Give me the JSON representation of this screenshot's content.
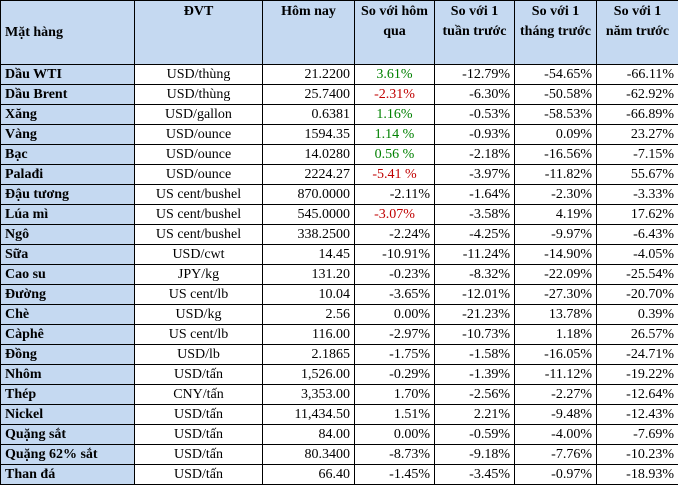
{
  "headers": [
    "Mặt hàng",
    "ĐVT",
    "Hôm nay",
    "So với hôm qua",
    "So với 1 tuần trước",
    "So với 1 tháng trước",
    "So với 1 năm trước"
  ],
  "colors": {
    "header_bg": "#c5d9f1",
    "up": "#008000",
    "down": "#c00000"
  },
  "rows": [
    {
      "item": "Dầu WTI",
      "unit": "USD/thùng",
      "today": "21.2200",
      "d1": "3.61%",
      "d1_style": "up",
      "w1": "-12.79%",
      "m1": "-54.65%",
      "y1": "-66.11%"
    },
    {
      "item": "Dầu Brent",
      "unit": "USD/thùng",
      "today": "25.7400",
      "d1": "-2.31%",
      "d1_style": "down",
      "w1": "-6.30%",
      "m1": "-50.58%",
      "y1": "-62.92%"
    },
    {
      "item": "Xăng",
      "unit": "USD/gallon",
      "today": "0.6381",
      "d1": "1.16%",
      "d1_style": "up",
      "w1": "-0.53%",
      "m1": "-58.53%",
      "y1": "-66.89%"
    },
    {
      "item": "Vàng",
      "unit": "USD/ounce",
      "today": "1594.35",
      "d1": "1.14 %",
      "d1_style": "up",
      "w1": "-0.93%",
      "m1": "0.09%",
      "y1": "23.27%"
    },
    {
      "item": "Bạc",
      "unit": "USD/ounce",
      "today": "14.0280",
      "d1": "0.56 %",
      "d1_style": "up",
      "w1": "-2.18%",
      "m1": "-16.56%",
      "y1": "-7.15%"
    },
    {
      "item": "Palađi",
      "unit": "USD/ounce",
      "today": "2224.27",
      "d1": "-5.41 %",
      "d1_style": "down",
      "w1": "-3.97%",
      "m1": "-11.82%",
      "y1": "55.67%"
    },
    {
      "item": "Đậu tương",
      "unit": "US cent/bushel",
      "today": "870.0000",
      "d1": "-2.11%",
      "d1_style": "num",
      "w1": "-1.64%",
      "m1": "-2.30%",
      "y1": "-3.33%"
    },
    {
      "item": "Lúa mì",
      "unit": "US cent/bushel",
      "today": "545.0000",
      "d1": "-3.07%",
      "d1_style": "down",
      "w1": "-3.58%",
      "m1": "4.19%",
      "y1": "17.62%"
    },
    {
      "item": "Ngô",
      "unit": "US cent/bushel",
      "today": "338.2500",
      "d1": "-2.24%",
      "d1_style": "num",
      "w1": "-4.25%",
      "m1": "-9.97%",
      "y1": "-6.43%"
    },
    {
      "item": "Sữa",
      "unit": "USD/cwt",
      "today": "14.45",
      "d1": "-10.91%",
      "d1_style": "num",
      "w1": "-11.24%",
      "m1": "-14.90%",
      "y1": "-4.05%"
    },
    {
      "item": "Cao su",
      "unit": "JPY/kg",
      "today": "131.20",
      "d1": "-0.23%",
      "d1_style": "num",
      "w1": "-8.32%",
      "m1": "-22.09%",
      "y1": "-25.54%"
    },
    {
      "item": "Đường",
      "unit": "US cent/lb",
      "today": "10.04",
      "d1": "-3.65%",
      "d1_style": "num",
      "w1": "-12.01%",
      "m1": "-27.30%",
      "y1": "-20.70%"
    },
    {
      "item": "Chè",
      "unit": "USD/kg",
      "today": "2.56",
      "d1": "0.00%",
      "d1_style": "num",
      "w1": "-21.23%",
      "m1": "13.78%",
      "y1": "0.39%"
    },
    {
      "item": "Càphê",
      "unit": "US cent/lb",
      "today": "116.00",
      "d1": "-2.97%",
      "d1_style": "num",
      "w1": "-10.73%",
      "m1": "1.18%",
      "y1": "26.57%"
    },
    {
      "item": "Đồng",
      "unit": "USD/lb",
      "today": "2.1865",
      "d1": "-1.75%",
      "d1_style": "num",
      "w1": "-1.58%",
      "m1": "-16.05%",
      "y1": "-24.71%"
    },
    {
      "item": "Nhôm",
      "unit": "USD/tấn",
      "today": "1,526.00",
      "d1": "-0.29%",
      "d1_style": "num",
      "w1": "-1.39%",
      "m1": "-11.12%",
      "y1": "-19.22%"
    },
    {
      "item": "Thép",
      "unit": "CNY/tấn",
      "today": "3,353.00",
      "d1": "1.70%",
      "d1_style": "num",
      "w1": "-2.56%",
      "m1": "-2.27%",
      "y1": "-12.64%"
    },
    {
      "item": "Nickel",
      "unit": "USD/tấn",
      "today": "11,434.50",
      "d1": "1.51%",
      "d1_style": "num",
      "w1": "2.21%",
      "m1": "-9.48%",
      "y1": "-12.43%"
    },
    {
      "item": "Quặng sắt",
      "unit": "USD/tấn",
      "today": "84.00",
      "d1": "0.00%",
      "d1_style": "num",
      "w1": "-0.59%",
      "m1": "-4.00%",
      "y1": "-7.69%"
    },
    {
      "item": "Quặng 62% sắt",
      "unit": "USD/tấn",
      "today": "80.3400",
      "d1": "-8.73%",
      "d1_style": "num",
      "w1": "-9.18%",
      "m1": "-7.76%",
      "y1": "-10.23%"
    },
    {
      "item": "Than đá",
      "unit": "USD/tấn",
      "today": "66.40",
      "d1": "-1.45%",
      "d1_style": "num",
      "w1": "-3.45%",
      "m1": "-0.97%",
      "y1": "-18.93%"
    }
  ]
}
